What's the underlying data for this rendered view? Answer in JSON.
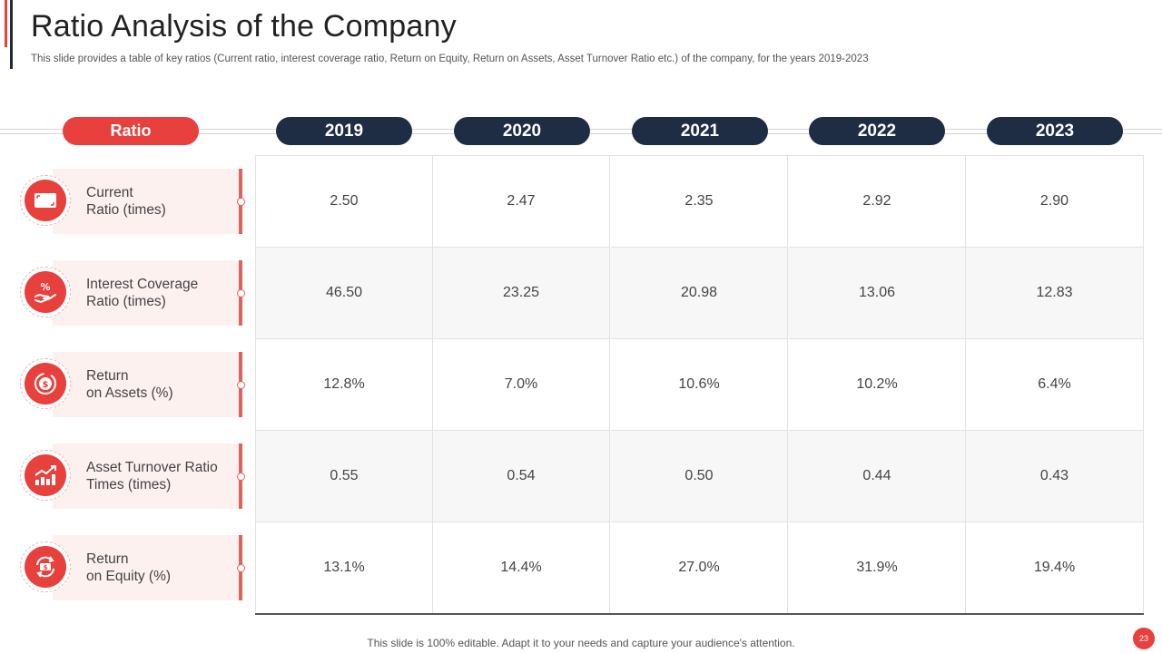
{
  "header": {
    "title": "Ratio Analysis of the Company",
    "subtitle": "This slide provides a table of key ratios (Current ratio, interest coverage ratio, Return on Equity, Return on Assets, Asset Turnover Ratio etc.) of the company, for the years 2019-2023"
  },
  "table": {
    "ratio_header": "Ratio",
    "years": [
      "2019",
      "2020",
      "2021",
      "2022",
      "2023"
    ],
    "rows": [
      {
        "line1": "Current",
        "line2": "Ratio (times)",
        "icon": "wallet-icon",
        "values": [
          "2.50",
          "2.47",
          "2.35",
          "2.92",
          "2.90"
        ]
      },
      {
        "line1": "Interest  Coverage",
        "line2": "Ratio (times)",
        "icon": "hand-percent-icon",
        "values": [
          "46.50",
          "23.25",
          "20.98",
          "13.06",
          "12.83"
        ]
      },
      {
        "line1": "Return",
        "line2": "on Assets (%)",
        "icon": "dollar-coin-icon",
        "values": [
          "12.8%",
          "7.0%",
          "10.6%",
          "10.2%",
          "6.4%"
        ]
      },
      {
        "line1": "Asset Turnover  Ratio",
        "line2": "Times (times)",
        "icon": "growth-chart-icon",
        "values": [
          "0.55",
          "0.54",
          "0.50",
          "0.44",
          "0.43"
        ]
      },
      {
        "line1": "Return",
        "line2": "on Equity (%)",
        "icon": "money-cycle-icon",
        "values": [
          "13.1%",
          "14.4%",
          "27.0%",
          "31.9%",
          "19.4%"
        ]
      }
    ]
  },
  "footer": {
    "note": "This slide is 100% editable. Adapt it to your needs and capture your audience's attention.",
    "page_number": "23"
  },
  "colors": {
    "accent_red": "#e8403c",
    "navy": "#1f2d44",
    "label_bg": "#fdf1f0"
  }
}
